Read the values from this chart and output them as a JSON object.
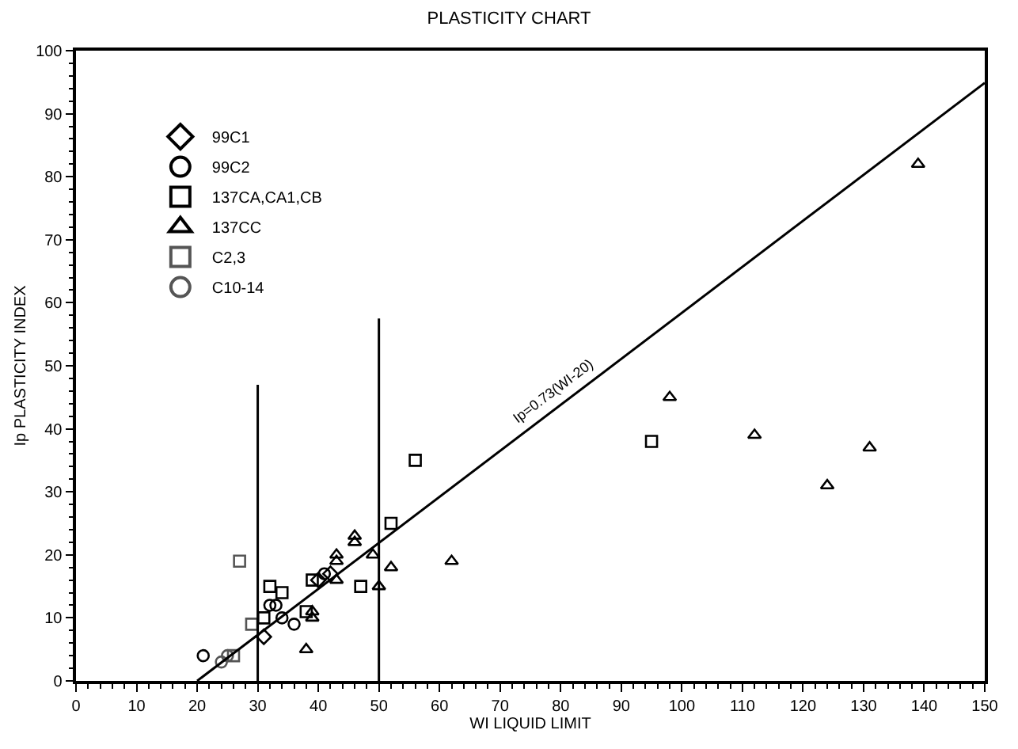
{
  "chart_data": {
    "type": "scatter",
    "title": "PLASTICITY CHART",
    "xlabel": "WI LIQUID LIMIT",
    "ylabel": "Ip PLASTICITY INDEX",
    "xlim": [
      0,
      150
    ],
    "xticks": [
      0,
      10,
      20,
      30,
      40,
      50,
      60,
      70,
      80,
      90,
      100,
      110,
      120,
      130,
      140,
      150
    ],
    "ylim": [
      0,
      100
    ],
    "yticks": [
      0,
      10,
      20,
      30,
      40,
      50,
      60,
      70,
      80,
      90,
      100
    ],
    "legend": "top left",
    "series": [
      {
        "name": "99C1",
        "color": "#000000",
        "marker": "diamond",
        "x": [
          31,
          40,
          42
        ],
        "values": [
          7,
          16,
          17
        ]
      },
      {
        "name": "99C2",
        "color": "#000000",
        "marker": "circle",
        "x": [
          21,
          32,
          33,
          34,
          36,
          41
        ],
        "values": [
          4,
          12,
          12,
          10,
          9,
          17
        ]
      },
      {
        "name": "137CA,CA1,CB",
        "color": "#000000",
        "marker": "square",
        "x": [
          31,
          32,
          34,
          38,
          39,
          47,
          52,
          56,
          95
        ],
        "values": [
          10,
          15,
          14,
          11,
          16,
          15,
          25,
          35,
          38
        ]
      },
      {
        "name": "137CC",
        "color": "#000000",
        "marker": "triangle",
        "x": [
          38,
          39,
          39,
          43,
          43,
          43,
          46,
          46,
          49,
          50,
          52,
          62,
          98,
          112,
          124,
          131,
          139
        ],
        "values": [
          5,
          11,
          10,
          19,
          20,
          16,
          23,
          22,
          20,
          15,
          18,
          19,
          45,
          39,
          31,
          37,
          82
        ]
      },
      {
        "name": "C2,3",
        "color": "#555555",
        "marker": "square",
        "x": [
          27,
          29,
          26
        ],
        "values": [
          19,
          9,
          4
        ]
      },
      {
        "name": "C10-14",
        "color": "#555555",
        "marker": "circle",
        "x": [
          24,
          25
        ],
        "values": [
          3,
          4
        ]
      },
      {
        "type": "line",
        "color": "#000000",
        "marker": "none",
        "x": [
          30,
          30
        ],
        "values": [
          0,
          47
        ]
      },
      {
        "type": "line",
        "color": "#000000",
        "marker": "none",
        "x": [
          50,
          50
        ],
        "values": [
          0,
          57.5
        ]
      },
      {
        "type": "line",
        "color": "#000000",
        "marker": "none",
        "x": [
          20,
          150
        ],
        "values": [
          0,
          94.9
        ]
      }
    ],
    "annotations": [
      {
        "text": "Ip=0.73(WI-20)",
        "x": 80,
        "y": 43.8
      }
    ]
  }
}
